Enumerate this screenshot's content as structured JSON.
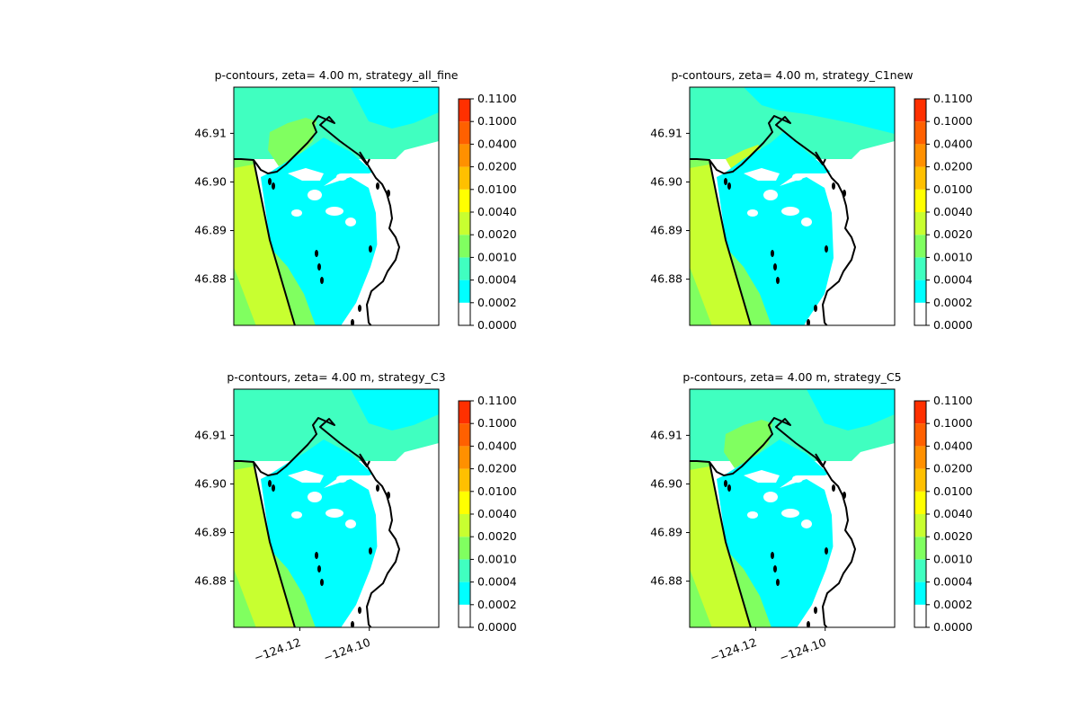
{
  "chart_data": {
    "type": "filled-contour map",
    "grid": false,
    "legend": "colorbar right of each panel",
    "colorbar": {
      "levels": [
        0.0,
        0.0002,
        0.0004,
        0.001,
        0.002,
        0.004,
        0.01,
        0.02,
        0.04,
        0.1,
        0.11
      ],
      "tick_labels": [
        "0.0000",
        "0.0002",
        "0.0004",
        "0.0010",
        "0.0020",
        "0.0040",
        "0.0100",
        "0.0200",
        "0.0400",
        "0.1000",
        "0.1100"
      ],
      "colors": [
        "#ffffff",
        "#00ffff",
        "#40ffc0",
        "#80ff60",
        "#c8ff30",
        "#ffff00",
        "#ffc000",
        "#ff9000",
        "#ff6000",
        "#ff3000",
        "#ff0000"
      ]
    },
    "xlim": [
      -124.139,
      -124.08
    ],
    "ylim": [
      46.8705,
      46.9195
    ],
    "x_ticks": [
      -124.12,
      -124.1
    ],
    "x_tick_labels": [
      "−124.12",
      "−124.10"
    ],
    "y_ticks": [
      46.88,
      46.89,
      46.9,
      46.91
    ],
    "y_tick_labels": [
      "46.88",
      "46.89",
      "46.90",
      "46.91"
    ],
    "panels": [
      {
        "title": "p-contours, zeta= 4.00 m, strategy_all_fine",
        "variant": "all_fine"
      },
      {
        "title": "p-contours, zeta= 4.00 m, strategy_C1new",
        "variant": "c1new"
      },
      {
        "title": "p-contours, zeta= 4.00 m, strategy_C3",
        "variant": "c3"
      },
      {
        "title": "p-contours, zeta= 4.00 m, strategy_C5",
        "variant": "c5"
      }
    ]
  }
}
